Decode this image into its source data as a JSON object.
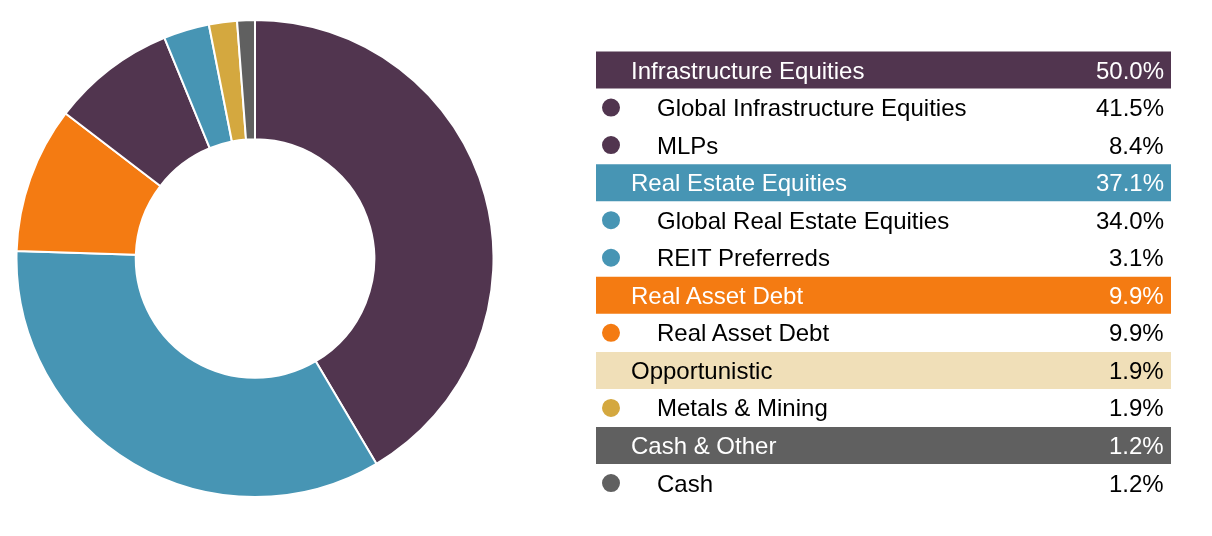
{
  "chart_data": {
    "type": "donut",
    "categories": [
      "Global Infrastructure Equities",
      "Global Real Estate Equities",
      "Real Asset Debt",
      "MLPs",
      "REIT Preferreds",
      "Metals & Mining",
      "Cash"
    ],
    "values": [
      41.5,
      34.0,
      9.9,
      8.4,
      3.1,
      1.9,
      1.2
    ],
    "colors": [
      "#51354f",
      "#4795b4",
      "#f47b12",
      "#51354f",
      "#4795b4",
      "#d4a83f",
      "#606060"
    ],
    "value_labels": [
      "41.5%",
      "34.0%",
      "9.9%",
      "8.4%",
      "3.1%",
      "1.9%",
      "1.2%"
    ],
    "annotations": [
      "Infrastructure Equities",
      "50.0%",
      "Real Estate Equities",
      "37.1%",
      "Real Asset Debt",
      "9.9%",
      "Opportunistic",
      "1.9%",
      "Cash & Other",
      "1.2%"
    ],
    "legend": "right"
  }
}
